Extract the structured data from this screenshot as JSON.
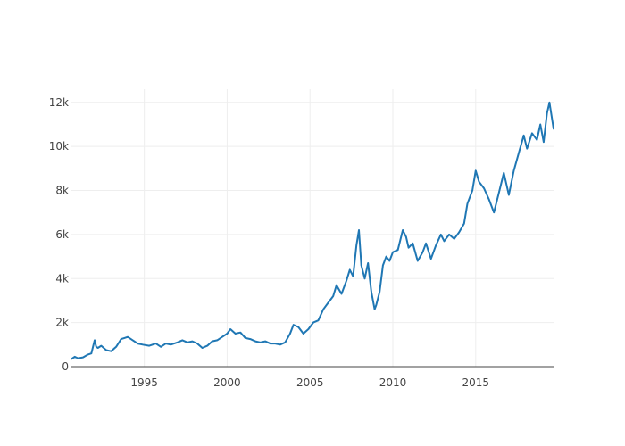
{
  "chart_data": {
    "type": "line",
    "title": "",
    "xlabel": "",
    "ylabel": "",
    "xlim": [
      1990.6,
      2019.7
    ],
    "ylim": [
      0,
      12600
    ],
    "x_ticks": [
      {
        "value": 1995,
        "label": "1995"
      },
      {
        "value": 2000,
        "label": "2000"
      },
      {
        "value": 2005,
        "label": "2005"
      },
      {
        "value": 2010,
        "label": "2010"
      },
      {
        "value": 2015,
        "label": "2015"
      }
    ],
    "y_ticks": [
      {
        "value": 0,
        "label": "0"
      },
      {
        "value": 2000,
        "label": "2k"
      },
      {
        "value": 4000,
        "label": "4k"
      },
      {
        "value": 6000,
        "label": "6k"
      },
      {
        "value": 8000,
        "label": "8k"
      },
      {
        "value": 10000,
        "label": "10k"
      },
      {
        "value": 12000,
        "label": "12k"
      }
    ],
    "grid": true,
    "legend": "none",
    "series": [
      {
        "color": "#1f77b4",
        "x": [
          1990.6,
          1990.8,
          1991.0,
          1991.3,
          1991.6,
          1991.8,
          1992.0,
          1992.1,
          1992.2,
          1992.4,
          1992.7,
          1993.0,
          1993.3,
          1993.6,
          1993.8,
          1994.0,
          1994.3,
          1994.6,
          1994.9,
          1995.3,
          1995.7,
          1996.0,
          1996.3,
          1996.6,
          1997.0,
          1997.3,
          1997.6,
          1997.9,
          1998.2,
          1998.5,
          1998.8,
          1999.1,
          1999.4,
          1999.7,
          2000.0,
          2000.2,
          2000.5,
          2000.8,
          2001.1,
          2001.4,
          2001.7,
          2002.0,
          2002.3,
          2002.6,
          2002.9,
          2003.2,
          2003.5,
          2003.8,
          2004.0,
          2004.3,
          2004.6,
          2004.9,
          2005.2,
          2005.5,
          2005.8,
          2006.1,
          2006.4,
          2006.6,
          2006.9,
          2007.2,
          2007.4,
          2007.6,
          2007.8,
          2007.95,
          2008.1,
          2008.3,
          2008.5,
          2008.7,
          2008.9,
          2009.0,
          2009.2,
          2009.4,
          2009.6,
          2009.8,
          2010.0,
          2010.3,
          2010.6,
          2010.8,
          2010.95,
          2011.2,
          2011.5,
          2011.8,
          2012.0,
          2012.3,
          2012.6,
          2012.9,
          2013.1,
          2013.4,
          2013.7,
          2014.0,
          2014.3,
          2014.5,
          2014.8,
          2015.0,
          2015.2,
          2015.5,
          2015.8,
          2016.1,
          2016.4,
          2016.7,
          2017.0,
          2017.3,
          2017.6,
          2017.9,
          2018.1,
          2018.4,
          2018.7,
          2018.9,
          2019.1,
          2019.3,
          2019.45,
          2019.6,
          2019.7
        ],
        "y": [
          350,
          450,
          380,
          420,
          550,
          600,
          1200,
          900,
          850,
          950,
          750,
          700,
          900,
          1250,
          1300,
          1350,
          1200,
          1050,
          1000,
          950,
          1050,
          900,
          1050,
          1000,
          1100,
          1200,
          1100,
          1150,
          1050,
          850,
          950,
          1150,
          1200,
          1350,
          1500,
          1700,
          1500,
          1550,
          1300,
          1250,
          1150,
          1100,
          1150,
          1050,
          1050,
          1000,
          1100,
          1500,
          1900,
          1800,
          1500,
          1700,
          2000,
          2100,
          2600,
          2900,
          3200,
          3700,
          3300,
          3900,
          4400,
          4100,
          5500,
          6200,
          4600,
          4000,
          4700,
          3400,
          2600,
          2800,
          3400,
          4600,
          5000,
          4800,
          5200,
          5300,
          6200,
          5900,
          5400,
          5600,
          4800,
          5200,
          5600,
          4900,
          5500,
          6000,
          5700,
          6000,
          5800,
          6100,
          6500,
          7400,
          8000,
          8900,
          8400,
          8100,
          7600,
          7000,
          7900,
          8800,
          7800,
          8900,
          9700,
          10500,
          9900,
          10600,
          10300,
          11000,
          10200,
          11500,
          12000,
          11300,
          10800
        ]
      }
    ]
  }
}
